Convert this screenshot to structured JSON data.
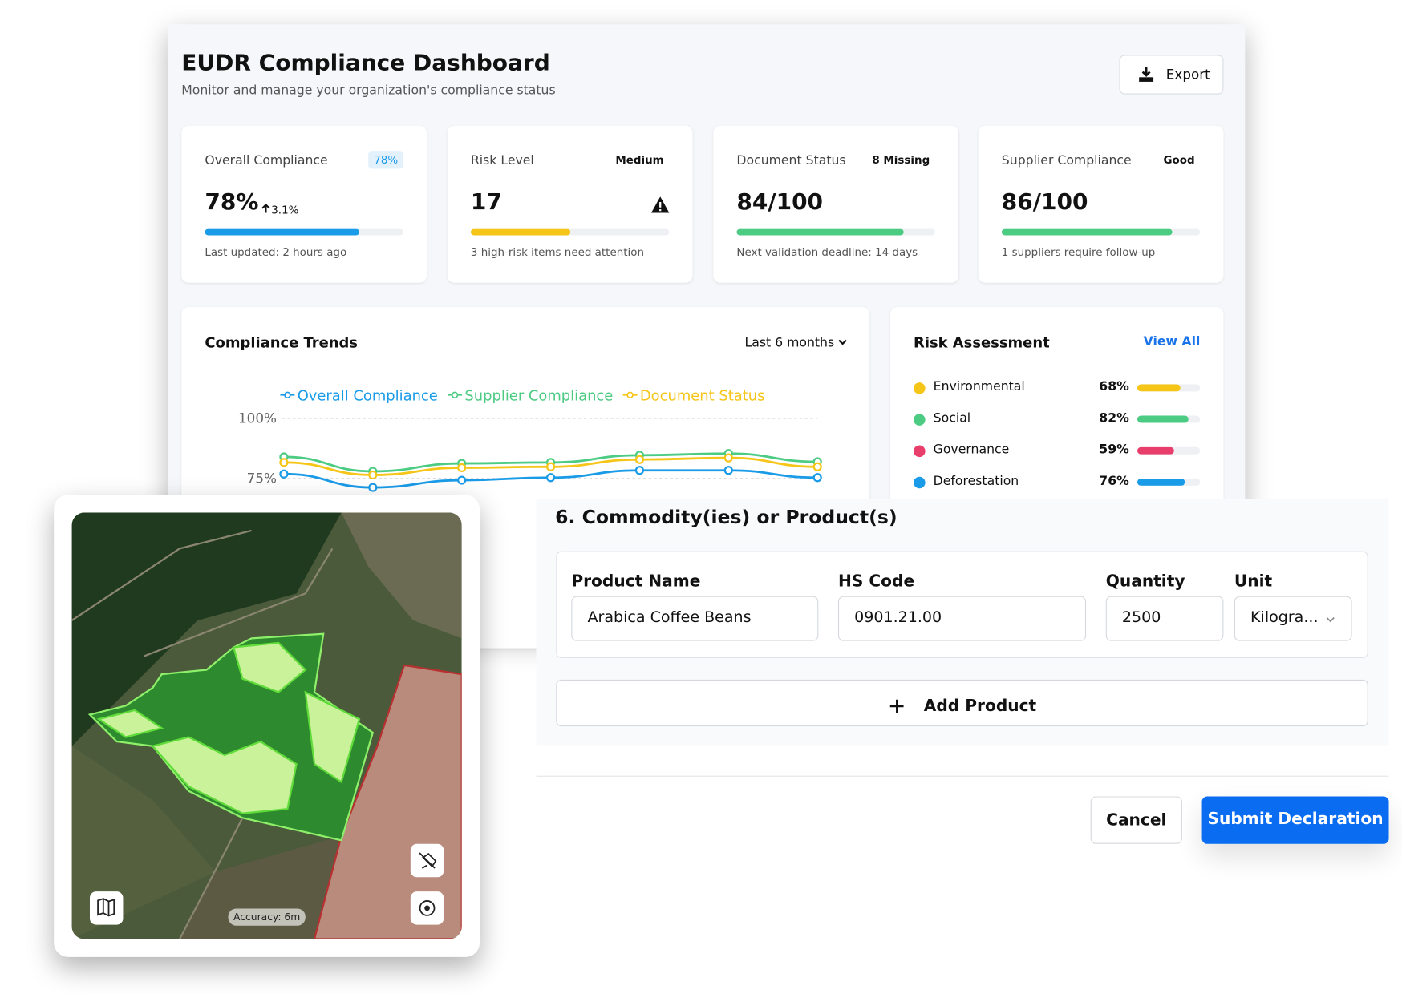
{
  "header": {
    "title": "EUDR Compliance Dashboard",
    "subtitle": "Monitor and manage your organization's compliance status",
    "export": "Export"
  },
  "cards": [
    {
      "label": "Overall Compliance",
      "badge": "78%",
      "value": "78%",
      "change": "3.1%",
      "progress": 78,
      "color": "#1a9be8",
      "note": "Last updated: 2 hours ago"
    },
    {
      "label": "Risk Level",
      "badge": "Medium",
      "value": "17",
      "progress": 50,
      "color": "#f5c518",
      "note": "3 high-risk items need attention"
    },
    {
      "label": "Document Status",
      "badge": "8 Missing",
      "value": "84/100",
      "progress": 84,
      "color": "#4ccb83",
      "note": "Next validation deadline: 14 days"
    },
    {
      "label": "Supplier Compliance",
      "badge": "Good",
      "value": "86/100",
      "progress": 86,
      "color": "#4ccb83",
      "note": "1 suppliers require follow-up"
    }
  ],
  "chart_data": {
    "type": "line",
    "title": "Compliance Trends",
    "range": "Last 6 months",
    "categories": [
      null,
      null,
      null,
      null,
      null,
      null,
      null
    ],
    "series": [
      {
        "name": "Overall Compliance",
        "color": "#1a9be8",
        "values": [
          76.9,
          71.3,
          74.3,
          75.4,
          78.4,
          78.4,
          75.4
        ]
      },
      {
        "name": "Supplier Compliance",
        "color": "#4ccb83",
        "values": [
          84,
          78,
          81.3,
          81.7,
          84.7,
          85.4,
          82
        ]
      },
      {
        "name": "Document Status",
        "color": "#f5c518",
        "values": [
          81.7,
          76.5,
          79.5,
          79.9,
          82.9,
          83.6,
          79.9
        ]
      }
    ],
    "ylim": [
      0,
      100
    ],
    "yticks": [
      {
        "value": 100,
        "label": "100%"
      },
      {
        "value": 75,
        "label": "75%"
      }
    ],
    "grid": true
  },
  "risk": {
    "title": "Risk Assessment",
    "link": "View All",
    "items": [
      {
        "name": "Environmental",
        "value": 68,
        "value_label": "68%",
        "color": "#f5c518"
      },
      {
        "name": "Social",
        "value": 82,
        "value_label": "82%",
        "color": "#4ccb83"
      },
      {
        "name": "Governance",
        "value": 59,
        "value_label": "59%",
        "color": "#e83e6c"
      },
      {
        "name": "Deforestation",
        "value": 76,
        "value_label": "76%",
        "color": "#1a9be8"
      }
    ]
  },
  "map": {
    "accuracy": "Accuracy: 6m"
  },
  "form": {
    "title": "6. Commodity(ies) or Product(s)",
    "fields": [
      {
        "label": "Product Name",
        "value": "Arabica Coffee Beans"
      },
      {
        "label": "HS Code",
        "value": "0901.21.00"
      },
      {
        "label": "Quantity",
        "value": "2500"
      },
      {
        "label": "Unit",
        "value": "Kilogra..."
      }
    ],
    "add": "Add Product",
    "cancel": "Cancel",
    "submit": "Submit Declaration"
  }
}
